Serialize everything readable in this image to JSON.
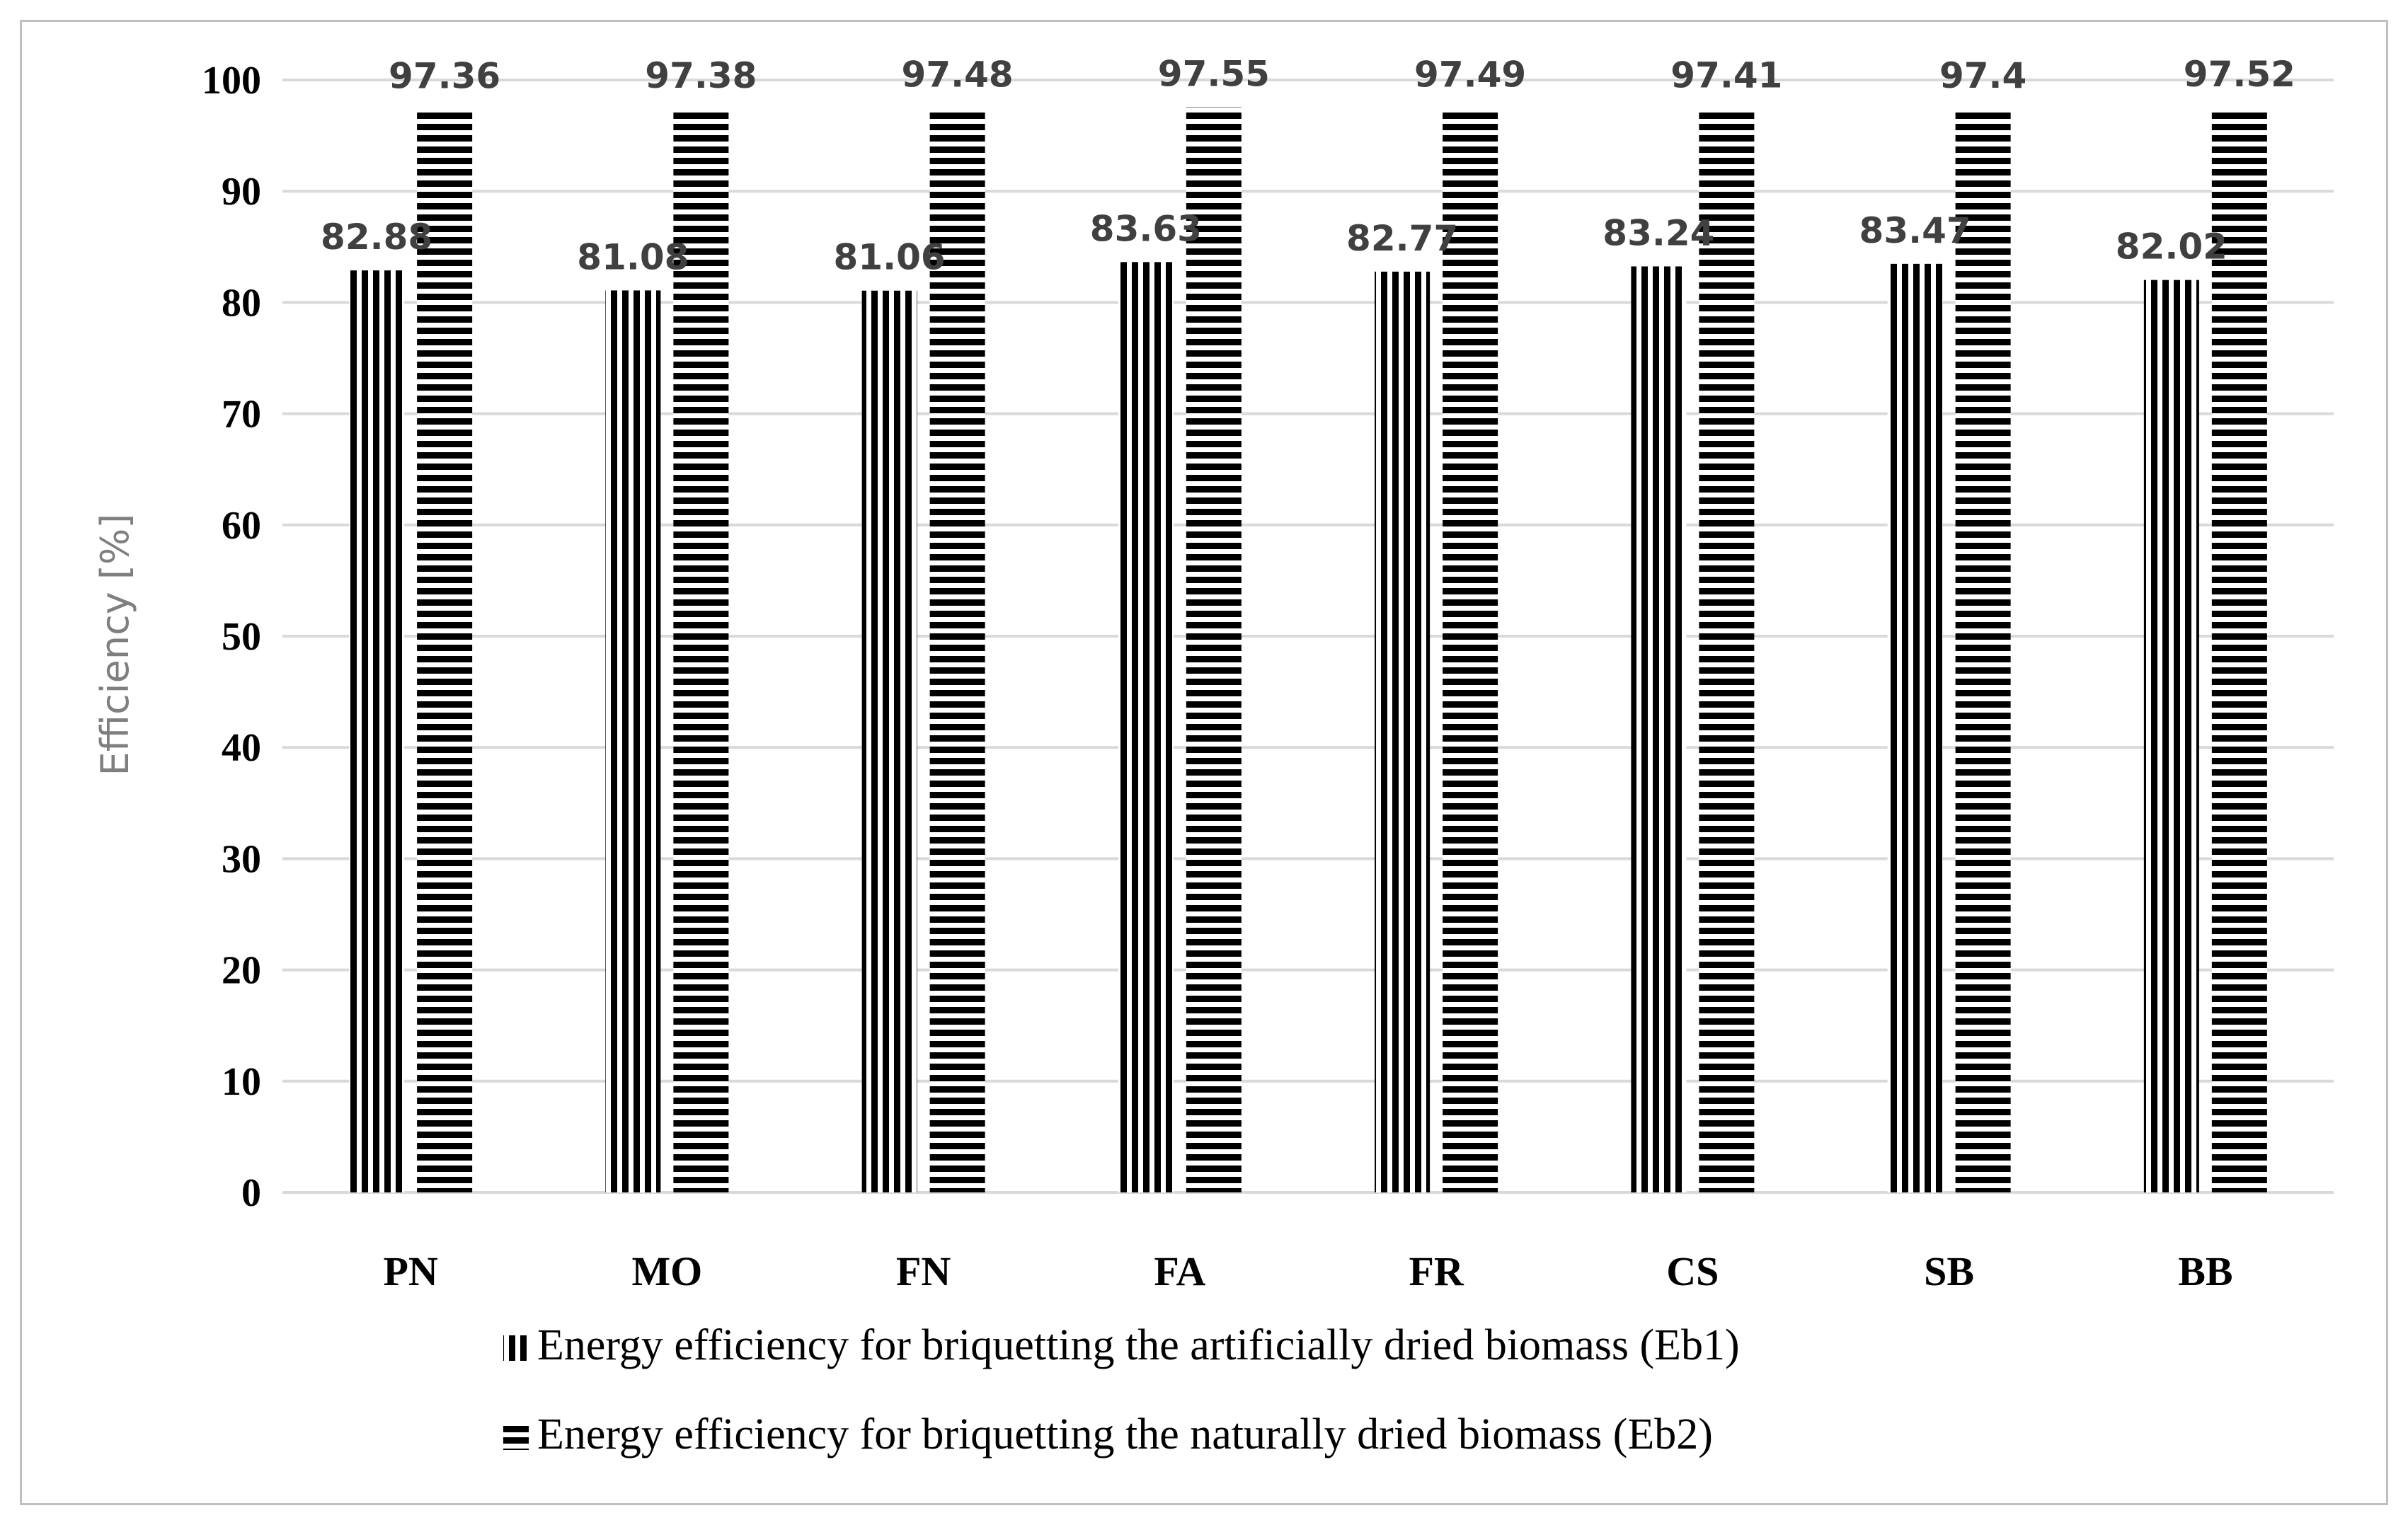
{
  "chart_data": {
    "type": "bar",
    "title": "",
    "xlabel": "",
    "ylabel": "Efficiency [%]",
    "ylim": [
      0,
      100
    ],
    "yticks": [
      "0",
      "10",
      "20",
      "30",
      "40",
      "50",
      "60",
      "70",
      "80",
      "90",
      "100"
    ],
    "grid": true,
    "legend_position": "bottom",
    "categories": [
      "PN",
      "MO",
      "FN",
      "FA",
      "FR",
      "CS",
      "SB",
      "BB"
    ],
    "series": [
      {
        "name": "Energy efficiency for briquetting the artificially dried biomass (Eb1)",
        "pattern": "vertical-stripes",
        "values": [
          82.88,
          81.08,
          81.06,
          83.63,
          82.77,
          83.24,
          83.47,
          82.02
        ],
        "labels": [
          "82.88",
          "81.08",
          "81.06",
          "83.63",
          "82.77",
          "83.24",
          "83.47",
          "82.02"
        ]
      },
      {
        "name": "Energy efficiency for briquetting the naturally dried biomass (Eb2)",
        "pattern": "horizontal-stripes",
        "values": [
          97.36,
          97.38,
          97.48,
          97.55,
          97.49,
          97.41,
          97.4,
          97.52
        ],
        "labels": [
          "97.36",
          "97.38",
          "97.48",
          "97.55",
          "97.49",
          "97.41",
          "97.4",
          "97.52"
        ]
      }
    ]
  },
  "colors": {
    "bar_stroke": "#000000",
    "grid": "#d9d9d9",
    "axis_title": "#7f7f7f",
    "data_label": "#404040"
  }
}
